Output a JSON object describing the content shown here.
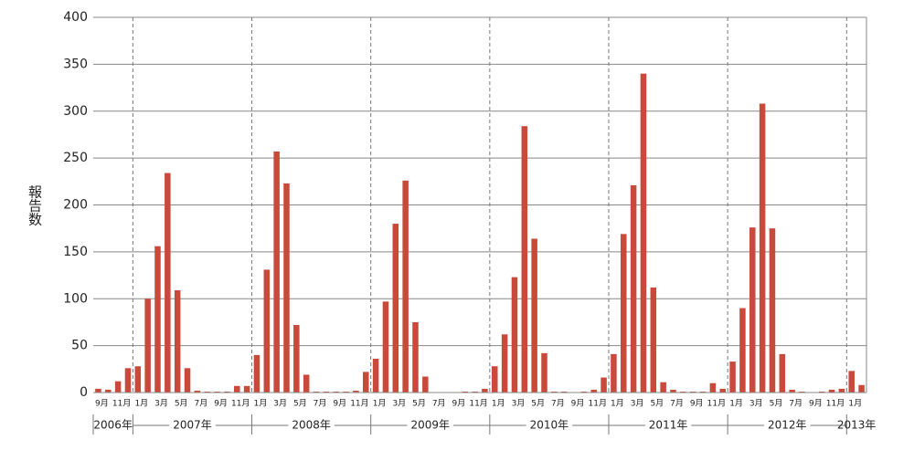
{
  "chart_data": {
    "type": "bar",
    "ylabel": "報告数",
    "categories": [
      "9月",
      null,
      "11月",
      null,
      "1月",
      null,
      "3月",
      null,
      "5月",
      null,
      "7月",
      null,
      "9月",
      null,
      "11月",
      null,
      "1月",
      null,
      "3月",
      null,
      "5月",
      null,
      "7月",
      null,
      "9月",
      null,
      "11月",
      null,
      "1月",
      null,
      "3月",
      null,
      "5月",
      null,
      "7月",
      null,
      "9月",
      null,
      "11月",
      null,
      "1月",
      null,
      "3月",
      null,
      "5月",
      null,
      "7月",
      null,
      "9月",
      null,
      "11月",
      null,
      "1月",
      null,
      "3月",
      null,
      "5月",
      null,
      "7月",
      null,
      "9月",
      null,
      "11月",
      null,
      "1月",
      null,
      "3月",
      null,
      "5月",
      null,
      "7月",
      null,
      "9月",
      null,
      "11月",
      null,
      "1月",
      null
    ],
    "years": [
      "2006年",
      "2007年",
      "2008年",
      "2009年",
      "2010年",
      "2011年",
      "2012年",
      "2013年"
    ],
    "values": [
      4,
      3,
      12,
      26,
      28,
      100,
      156,
      234,
      109,
      26,
      2,
      1,
      1,
      1,
      7,
      7,
      40,
      131,
      257,
      223,
      72,
      19,
      1,
      1,
      1,
      1,
      2,
      22,
      36,
      97,
      180,
      226,
      75,
      17,
      0,
      0,
      0,
      1,
      1,
      4,
      28,
      62,
      123,
      284,
      164,
      42,
      1,
      1,
      0,
      1,
      3,
      16,
      41,
      169,
      221,
      340,
      112,
      11,
      3,
      1,
      1,
      1,
      10,
      4,
      33,
      90,
      176,
      308,
      175,
      41,
      3,
      1,
      0,
      1,
      3,
      4,
      23,
      8
    ],
    "color": "#c94a3b",
    "ylim": [
      0,
      400
    ],
    "yticks": [
      0,
      50,
      100,
      150,
      200,
      250,
      300,
      350,
      400
    ],
    "grid": true
  }
}
